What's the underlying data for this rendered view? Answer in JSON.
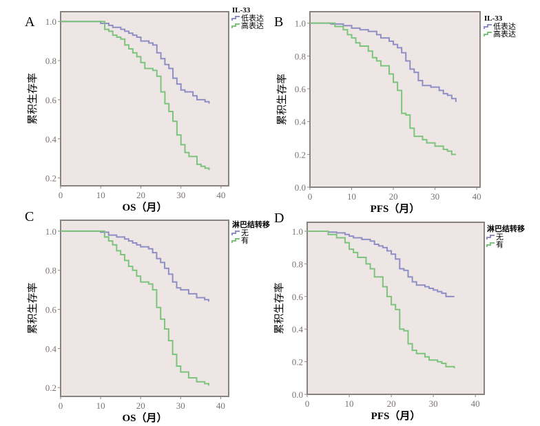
{
  "colors": {
    "low": "#8e8ec4",
    "high": "#7cc47c",
    "plot_bg": "#ede6e4",
    "frame": "#8a8280",
    "tick_text": "#7a7270"
  },
  "chart_data": [
    {
      "type": "line",
      "step": true,
      "panel_label": "A",
      "xlabel": "OS（月）",
      "ylabel": "累积生存率",
      "xlim": [
        0,
        41.9
      ],
      "ylim": [
        0.16,
        1.05
      ],
      "xticks": [
        0,
        10,
        20,
        30,
        40
      ],
      "yticks": [
        0.2,
        0.4,
        0.6,
        0.8,
        1.0
      ],
      "ytick_labels": [
        "0.2",
        "0.4",
        "0.6",
        "0.8",
        "1.0"
      ],
      "legend_title": "IL-33",
      "legend": "top-right",
      "series": [
        {
          "name": "低表达",
          "color_key": "low",
          "points": [
            [
              0,
              1
            ],
            [
              9,
              1
            ],
            [
              10,
              0.99
            ],
            [
              12,
              0.98
            ],
            [
              13,
              0.97
            ],
            [
              15,
              0.96
            ],
            [
              16,
              0.95
            ],
            [
              17,
              0.94
            ],
            [
              18,
              0.93
            ],
            [
              19,
              0.92
            ],
            [
              20,
              0.9
            ],
            [
              22,
              0.89
            ],
            [
              23,
              0.88
            ],
            [
              24,
              0.84
            ],
            [
              25,
              0.81
            ],
            [
              26,
              0.78
            ],
            [
              27,
              0.76
            ],
            [
              28,
              0.71
            ],
            [
              29,
              0.68
            ],
            [
              30,
              0.65
            ],
            [
              31,
              0.64
            ],
            [
              33,
              0.62
            ],
            [
              34,
              0.6
            ],
            [
              36,
              0.59
            ],
            [
              37,
              0.58
            ]
          ]
        },
        {
          "name": "高表达",
          "color_key": "high",
          "points": [
            [
              0,
              1
            ],
            [
              9,
              1
            ],
            [
              11,
              0.96
            ],
            [
              12,
              0.95
            ],
            [
              13,
              0.93
            ],
            [
              14,
              0.92
            ],
            [
              15,
              0.91
            ],
            [
              16,
              0.88
            ],
            [
              17,
              0.86
            ],
            [
              18,
              0.84
            ],
            [
              19,
              0.82
            ],
            [
              20,
              0.79
            ],
            [
              21,
              0.76
            ],
            [
              23,
              0.75
            ],
            [
              24,
              0.72
            ],
            [
              25,
              0.64
            ],
            [
              26,
              0.58
            ],
            [
              27,
              0.54
            ],
            [
              28,
              0.49
            ],
            [
              29,
              0.42
            ],
            [
              30,
              0.37
            ],
            [
              31,
              0.33
            ],
            [
              32,
              0.31
            ],
            [
              34,
              0.27
            ],
            [
              35,
              0.26
            ],
            [
              36,
              0.25
            ],
            [
              37,
              0.24
            ]
          ]
        }
      ]
    },
    {
      "type": "line",
      "step": true,
      "panel_label": "B",
      "xlabel": "PFS（月）",
      "ylabel": "累积生存率",
      "xlim": [
        0,
        40.8
      ],
      "ylim": [
        0,
        1.07
      ],
      "xticks": [
        0,
        10,
        20,
        30,
        40
      ],
      "yticks": [
        0,
        0.2,
        0.4,
        0.6,
        0.8,
        1.0
      ],
      "ytick_labels": [
        "0.0",
        "0.2",
        "0.4",
        "0.6",
        "0.8",
        "1.0"
      ],
      "legend_title": "IL-33",
      "legend": "top-right",
      "series": [
        {
          "name": "低表达",
          "color_key": "low",
          "points": [
            [
              0,
              1
            ],
            [
              3,
              1
            ],
            [
              5,
              0.995
            ],
            [
              8,
              0.985
            ],
            [
              10,
              0.97
            ],
            [
              12,
              0.96
            ],
            [
              14,
              0.95
            ],
            [
              16,
              0.93
            ],
            [
              17,
              0.91
            ],
            [
              19,
              0.89
            ],
            [
              20,
              0.87
            ],
            [
              21,
              0.85
            ],
            [
              22,
              0.82
            ],
            [
              23,
              0.77
            ],
            [
              24,
              0.72
            ],
            [
              25,
              0.7
            ],
            [
              26,
              0.65
            ],
            [
              27,
              0.62
            ],
            [
              29,
              0.61
            ],
            [
              31,
              0.59
            ],
            [
              32,
              0.57
            ],
            [
              33,
              0.56
            ],
            [
              34,
              0.54
            ],
            [
              35,
              0.52
            ]
          ]
        },
        {
          "name": "高表达",
          "color_key": "high",
          "points": [
            [
              0,
              1
            ],
            [
              4,
              1
            ],
            [
              6,
              0.98
            ],
            [
              8,
              0.96
            ],
            [
              9,
              0.93
            ],
            [
              10,
              0.91
            ],
            [
              11,
              0.88
            ],
            [
              12,
              0.86
            ],
            [
              14,
              0.83
            ],
            [
              15,
              0.79
            ],
            [
              16,
              0.77
            ],
            [
              17,
              0.74
            ],
            [
              19,
              0.69
            ],
            [
              20,
              0.64
            ],
            [
              21,
              0.59
            ],
            [
              22,
              0.45
            ],
            [
              23,
              0.44
            ],
            [
              24,
              0.36
            ],
            [
              25,
              0.31
            ],
            [
              27,
              0.29
            ],
            [
              28,
              0.27
            ],
            [
              30,
              0.25
            ],
            [
              32,
              0.23
            ],
            [
              33,
              0.22
            ],
            [
              34,
              0.2
            ],
            [
              35,
              0.2
            ]
          ]
        }
      ]
    },
    {
      "type": "line",
      "step": true,
      "panel_label": "C",
      "xlabel": "OS（月）",
      "ylabel": "累积生存率",
      "xlim": [
        0,
        42
      ],
      "ylim": [
        0.155,
        1.056
      ],
      "xticks": [
        0,
        10,
        20,
        30,
        40
      ],
      "yticks": [
        0.2,
        0.4,
        0.6,
        0.8,
        1.0
      ],
      "ytick_labels": [
        "0.2",
        "0.4",
        "0.6",
        "0.8",
        "1.0"
      ],
      "legend_title": "淋巴结转移",
      "legend": "top-right",
      "series": [
        {
          "name": "无",
          "color_key": "low",
          "points": [
            [
              0,
              1
            ],
            [
              9,
              1
            ],
            [
              10,
              0.995
            ],
            [
              12,
              0.98
            ],
            [
              14,
              0.97
            ],
            [
              16,
              0.96
            ],
            [
              17,
              0.95
            ],
            [
              18,
              0.94
            ],
            [
              19,
              0.93
            ],
            [
              20,
              0.92
            ],
            [
              22,
              0.91
            ],
            [
              23,
              0.89
            ],
            [
              24,
              0.86
            ],
            [
              25,
              0.84
            ],
            [
              26,
              0.81
            ],
            [
              27,
              0.78
            ],
            [
              28,
              0.74
            ],
            [
              29,
              0.71
            ],
            [
              30,
              0.7
            ],
            [
              32,
              0.68
            ],
            [
              34,
              0.66
            ],
            [
              36,
              0.65
            ],
            [
              37,
              0.64
            ]
          ]
        },
        {
          "name": "有",
          "color_key": "high",
          "points": [
            [
              0,
              1
            ],
            [
              10,
              1
            ],
            [
              11,
              0.97
            ],
            [
              12,
              0.95
            ],
            [
              13,
              0.93
            ],
            [
              14,
              0.9
            ],
            [
              15,
              0.88
            ],
            [
              16,
              0.85
            ],
            [
              17,
              0.82
            ],
            [
              18,
              0.8
            ],
            [
              19,
              0.77
            ],
            [
              20,
              0.74
            ],
            [
              22,
              0.73
            ],
            [
              23,
              0.7
            ],
            [
              24,
              0.61
            ],
            [
              25,
              0.55
            ],
            [
              26,
              0.5
            ],
            [
              27,
              0.44
            ],
            [
              28,
              0.37
            ],
            [
              29,
              0.31
            ],
            [
              30,
              0.28
            ],
            [
              32,
              0.25
            ],
            [
              34,
              0.23
            ],
            [
              36,
              0.22
            ],
            [
              37,
              0.21
            ]
          ]
        }
      ]
    },
    {
      "type": "line",
      "step": true,
      "panel_label": "D",
      "xlabel": "PFS（月）",
      "ylabel": "累积生存率",
      "xlim": [
        0,
        42.1
      ],
      "ylim": [
        0,
        1.055
      ],
      "xticks": [
        0,
        10,
        20,
        30,
        40
      ],
      "yticks": [
        0,
        0.2,
        0.4,
        0.6,
        0.8,
        1.0
      ],
      "ytick_labels": [
        "0.0",
        "0.2",
        "0.4",
        "0.6",
        "0.8",
        "1.0"
      ],
      "legend_title": "淋巴结转移",
      "legend": "top-right",
      "series": [
        {
          "name": "无",
          "color_key": "low",
          "points": [
            [
              0,
              1
            ],
            [
              3,
              1
            ],
            [
              5,
              0.995
            ],
            [
              7,
              0.99
            ],
            [
              9,
              0.98
            ],
            [
              10,
              0.97
            ],
            [
              11,
              0.96
            ],
            [
              13,
              0.95
            ],
            [
              15,
              0.94
            ],
            [
              16,
              0.92
            ],
            [
              17,
              0.91
            ],
            [
              18,
              0.9
            ],
            [
              19,
              0.88
            ],
            [
              20,
              0.86
            ],
            [
              21,
              0.83
            ],
            [
              22,
              0.77
            ],
            [
              23,
              0.76
            ],
            [
              24,
              0.72
            ],
            [
              25,
              0.69
            ],
            [
              26,
              0.67
            ],
            [
              28,
              0.66
            ],
            [
              29,
              0.65
            ],
            [
              30,
              0.64
            ],
            [
              31,
              0.63
            ],
            [
              32,
              0.62
            ],
            [
              33,
              0.6
            ],
            [
              35,
              0.6
            ]
          ]
        },
        {
          "name": "有",
          "color_key": "high",
          "points": [
            [
              0,
              1
            ],
            [
              3,
              1
            ],
            [
              5,
              0.98
            ],
            [
              7,
              0.96
            ],
            [
              9,
              0.93
            ],
            [
              10,
              0.89
            ],
            [
              11,
              0.87
            ],
            [
              12,
              0.84
            ],
            [
              14,
              0.8
            ],
            [
              15,
              0.77
            ],
            [
              16,
              0.72
            ],
            [
              18,
              0.66
            ],
            [
              19,
              0.6
            ],
            [
              20,
              0.55
            ],
            [
              21,
              0.52
            ],
            [
              22,
              0.4
            ],
            [
              23,
              0.39
            ],
            [
              24,
              0.31
            ],
            [
              25,
              0.27
            ],
            [
              26,
              0.25
            ],
            [
              28,
              0.23
            ],
            [
              29,
              0.21
            ],
            [
              31,
              0.2
            ],
            [
              32,
              0.19
            ],
            [
              33,
              0.17
            ],
            [
              35,
              0.16
            ]
          ]
        }
      ]
    }
  ]
}
